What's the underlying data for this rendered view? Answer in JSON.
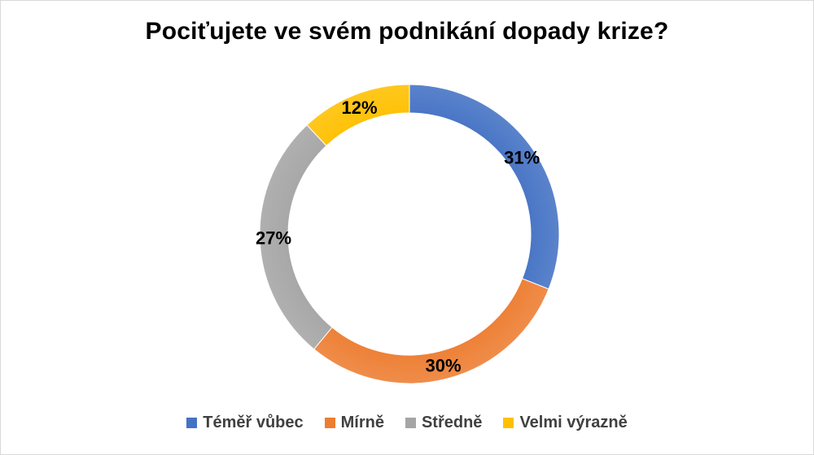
{
  "chart_data": {
    "type": "pie",
    "variant": "doughnut",
    "title": "Pociťujete ve svém podnikání dopady krize?",
    "categories": [
      "Téměř vůbec",
      "Mírně",
      "Středně",
      "Velmi výrazně"
    ],
    "values": [
      31,
      30,
      27,
      12
    ],
    "labels": [
      "31%",
      "30%",
      "27%",
      "12%"
    ],
    "colors": [
      "#4472C4",
      "#ED7D31",
      "#A5A5A5",
      "#FFC000"
    ],
    "legend_position": "bottom"
  }
}
